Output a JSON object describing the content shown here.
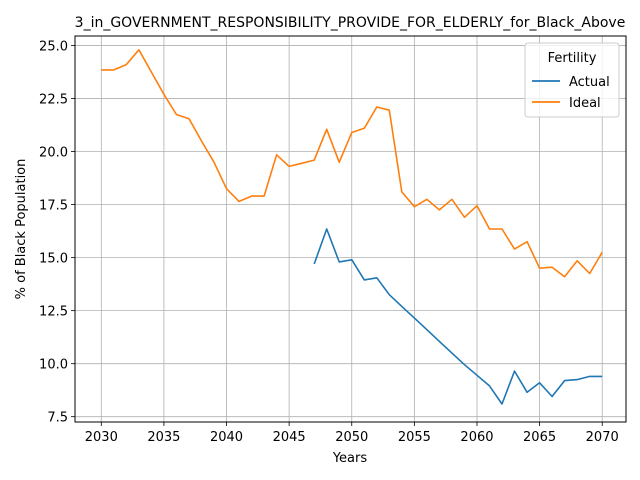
{
  "chart_data": {
    "type": "line",
    "title": "3_in_GOVERNMENT_RESPONSIBILITY_PROVIDE_FOR_ELDERLY_for_Black_Above",
    "xlabel": "Years",
    "ylabel": "% of Black Population",
    "xlim": [
      2027.9,
      2071.9
    ],
    "ylim": [
      7.25,
      25.45
    ],
    "xticks": [
      2030,
      2035,
      2040,
      2045,
      2050,
      2055,
      2060,
      2065,
      2070
    ],
    "yticks": [
      7.5,
      10.0,
      12.5,
      15.0,
      17.5,
      20.0,
      22.5,
      25.0
    ],
    "xtick_labels": [
      "2030",
      "2035",
      "2040",
      "2045",
      "2050",
      "2055",
      "2060",
      "2065",
      "2070"
    ],
    "ytick_labels": [
      "7.5",
      "10.0",
      "12.5",
      "15.0",
      "17.5",
      "20.0",
      "22.5",
      "25.0"
    ],
    "grid": true,
    "legend": {
      "title": "Fertility",
      "placement": "top-right"
    },
    "series": [
      {
        "name": "Actual",
        "color": "#1f77b4",
        "x": [
          2047,
          2048,
          2049,
          2050,
          2051,
          2052,
          2053,
          2054,
          2055,
          2056,
          2057,
          2058,
          2059,
          2060,
          2061,
          2062,
          2063,
          2064,
          2065,
          2066,
          2067,
          2068,
          2069,
          2070
        ],
        "y": [
          14.7,
          16.35,
          14.8,
          14.9,
          13.95,
          14.05,
          13.25,
          12.7,
          12.15,
          11.6,
          11.05,
          10.5,
          9.95,
          9.45,
          8.95,
          8.1,
          9.65,
          8.65,
          9.1,
          8.45,
          9.2,
          9.25,
          9.4,
          9.4
        ]
      },
      {
        "name": "Ideal",
        "color": "#ff7f0e",
        "x": [
          2030,
          2031,
          2032,
          2033,
          2034,
          2035,
          2036,
          2037,
          2038,
          2039,
          2040,
          2041,
          2042,
          2043,
          2044,
          2045,
          2046,
          2047,
          2048,
          2049,
          2050,
          2051,
          2052,
          2053,
          2054,
          2055,
          2056,
          2057,
          2058,
          2059,
          2060,
          2061,
          2062,
          2063,
          2064,
          2065,
          2066,
          2067,
          2068,
          2069,
          2070
        ],
        "y": [
          23.85,
          23.85,
          24.1,
          24.8,
          23.75,
          22.7,
          21.75,
          21.55,
          20.5,
          19.5,
          18.25,
          17.65,
          17.9,
          17.9,
          19.85,
          19.3,
          19.45,
          19.6,
          21.05,
          19.5,
          20.9,
          21.1,
          22.1,
          21.95,
          18.1,
          17.4,
          17.75,
          17.25,
          17.75,
          16.9,
          17.45,
          16.35,
          16.35,
          15.4,
          15.75,
          14.5,
          14.55,
          14.1,
          14.85,
          14.25,
          15.25
        ]
      }
    ]
  }
}
